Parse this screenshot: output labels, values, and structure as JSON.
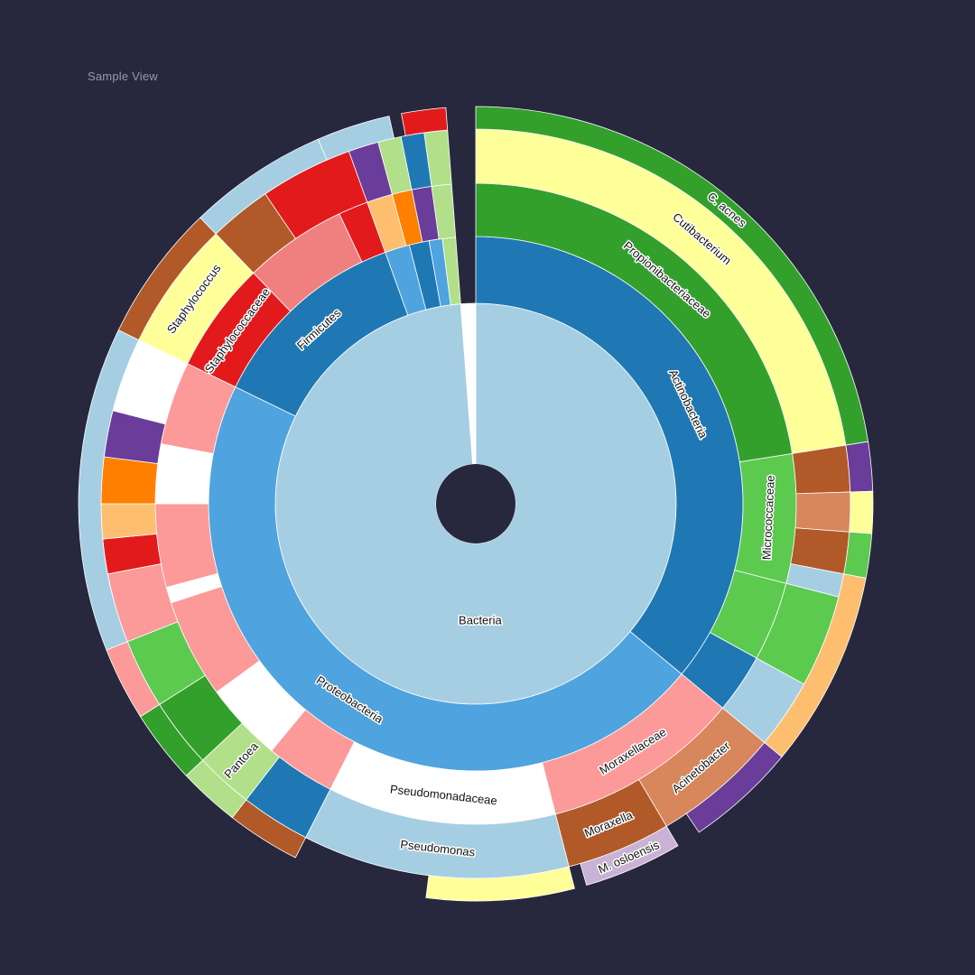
{
  "view_title": "Sample View",
  "colors": {
    "background": "#27273d",
    "segment_border": "#ffffff"
  },
  "chart_data": {
    "type": "sunburst",
    "title": "",
    "levels": [
      "domain",
      "phylum",
      "family",
      "genus",
      "species"
    ],
    "segments": [
      {
        "level": 0,
        "label": "Bacteria",
        "start": 0.0,
        "end": 0.988,
        "color": "#a6cee3",
        "show_label": true
      },
      {
        "level": 0,
        "label": "",
        "start": 0.988,
        "end": 1.0,
        "color": "#ffffff"
      },
      {
        "level": 1,
        "label": "Actinobacteria",
        "start": 0.0,
        "end": 0.36,
        "color": "#1f78b4",
        "show_label": true
      },
      {
        "level": 1,
        "label": "Proteobacteria",
        "start": 0.36,
        "end": 0.822,
        "color": "#4fa3de",
        "show_label": true
      },
      {
        "level": 1,
        "label": "Firmicutes",
        "start": 0.822,
        "end": 0.945,
        "color": "#1f78b4",
        "show_label": true
      },
      {
        "level": 1,
        "label": "",
        "start": 0.945,
        "end": 0.96,
        "color": "#4fa3de"
      },
      {
        "level": 1,
        "label": "",
        "start": 0.96,
        "end": 0.972,
        "color": "#1f78b4"
      },
      {
        "level": 1,
        "label": "",
        "start": 0.972,
        "end": 0.98,
        "color": "#4fa3de"
      },
      {
        "level": 1,
        "label": "",
        "start": 0.98,
        "end": 0.988,
        "color": "#b2df8a"
      },
      {
        "level": 2,
        "label": "Propionibacteriaceae",
        "start": 0.0,
        "end": 0.225,
        "color": "#33a02c",
        "show_label": true
      },
      {
        "level": 2,
        "label": "Micrococcaceae",
        "start": 0.225,
        "end": 0.29,
        "color": "#5cc94f",
        "show_label": true
      },
      {
        "level": 2,
        "label": "",
        "start": 0.29,
        "end": 0.33,
        "color": "#5cc94f"
      },
      {
        "level": 2,
        "label": "",
        "start": 0.33,
        "end": 0.36,
        "color": "#1f78b4"
      },
      {
        "level": 2,
        "label": "Moraxellaceae",
        "start": 0.36,
        "end": 0.46,
        "color": "#fb9a99",
        "show_label": true
      },
      {
        "level": 2,
        "label": "Pseudomonadaceae",
        "start": 0.46,
        "end": 0.575,
        "color": "#ffffff",
        "show_label": true
      },
      {
        "level": 2,
        "label": "",
        "start": 0.575,
        "end": 0.61,
        "color": "#fb9a99"
      },
      {
        "level": 2,
        "label": "",
        "start": 0.61,
        "end": 0.65,
        "color": "#ffffff"
      },
      {
        "level": 2,
        "label": "",
        "start": 0.65,
        "end": 0.7,
        "color": "#fb9a99"
      },
      {
        "level": 2,
        "label": "",
        "start": 0.7,
        "end": 0.708,
        "color": "#ffffff"
      },
      {
        "level": 2,
        "label": "",
        "start": 0.708,
        "end": 0.75,
        "color": "#fb9a99"
      },
      {
        "level": 2,
        "label": "",
        "start": 0.75,
        "end": 0.78,
        "color": "#ffffff"
      },
      {
        "level": 2,
        "label": "",
        "start": 0.78,
        "end": 0.822,
        "color": "#fb9a99"
      },
      {
        "level": 2,
        "label": "Staphylococcaceae",
        "start": 0.822,
        "end": 0.878,
        "color": "#e31a1c",
        "show_label": true
      },
      {
        "level": 2,
        "label": "",
        "start": 0.878,
        "end": 0.93,
        "color": "#f08080"
      },
      {
        "level": 2,
        "label": "",
        "start": 0.93,
        "end": 0.945,
        "color": "#e31a1c"
      },
      {
        "level": 2,
        "label": "",
        "start": 0.945,
        "end": 0.958,
        "color": "#fdbf6f"
      },
      {
        "level": 2,
        "label": "",
        "start": 0.958,
        "end": 0.968,
        "color": "#ff7f00"
      },
      {
        "level": 2,
        "label": "",
        "start": 0.968,
        "end": 0.978,
        "color": "#6a3d9a"
      },
      {
        "level": 2,
        "label": "",
        "start": 0.978,
        "end": 0.988,
        "color": "#b2df8a"
      },
      {
        "level": 3,
        "label": "Cutibacterium",
        "start": 0.0,
        "end": 0.225,
        "color": "#ffff99",
        "show_label": true
      },
      {
        "level": 3,
        "label": "",
        "start": 0.225,
        "end": 0.245,
        "color": "#b15928"
      },
      {
        "level": 3,
        "label": "",
        "start": 0.245,
        "end": 0.262,
        "color": "#d8865b"
      },
      {
        "level": 3,
        "label": "",
        "start": 0.262,
        "end": 0.28,
        "color": "#b15928"
      },
      {
        "level": 3,
        "label": "",
        "start": 0.28,
        "end": 0.29,
        "color": "#a6cee3"
      },
      {
        "level": 3,
        "label": "",
        "start": 0.29,
        "end": 0.33,
        "color": "#5cc94f"
      },
      {
        "level": 3,
        "label": "",
        "start": 0.33,
        "end": 0.36,
        "color": "#a6cee3"
      },
      {
        "level": 3,
        "label": "Acinetobacter",
        "start": 0.36,
        "end": 0.415,
        "color": "#d8865b",
        "show_label": true
      },
      {
        "level": 3,
        "label": "Moraxella",
        "start": 0.415,
        "end": 0.46,
        "color": "#b15928",
        "show_label": true
      },
      {
        "level": 3,
        "label": "Pseudomonas",
        "start": 0.46,
        "end": 0.575,
        "color": "#a6cee3",
        "show_label": true
      },
      {
        "level": 3,
        "label": "",
        "start": 0.575,
        "end": 0.605,
        "color": "#1f78b4"
      },
      {
        "level": 3,
        "label": "Pantoea",
        "start": 0.605,
        "end": 0.63,
        "color": "#b2df8a",
        "show_label": true
      },
      {
        "level": 3,
        "label": "",
        "start": 0.63,
        "end": 0.66,
        "color": "#33a02c"
      },
      {
        "level": 3,
        "label": "",
        "start": 0.66,
        "end": 0.69,
        "color": "#5cc94f"
      },
      {
        "level": 3,
        "label": "",
        "start": 0.69,
        "end": 0.72,
        "color": "#fb9a99"
      },
      {
        "level": 3,
        "label": "",
        "start": 0.72,
        "end": 0.735,
        "color": "#e31a1c"
      },
      {
        "level": 3,
        "label": "",
        "start": 0.735,
        "end": 0.75,
        "color": "#fdbf6f"
      },
      {
        "level": 3,
        "label": "",
        "start": 0.75,
        "end": 0.77,
        "color": "#ff7f00"
      },
      {
        "level": 3,
        "label": "",
        "start": 0.77,
        "end": 0.79,
        "color": "#6a3d9a"
      },
      {
        "level": 3,
        "label": "",
        "start": 0.79,
        "end": 0.822,
        "color": "#ffffff"
      },
      {
        "level": 3,
        "label": "Staphylococcus",
        "start": 0.822,
        "end": 0.878,
        "color": "#ffff99",
        "show_label": true
      },
      {
        "level": 3,
        "label": "",
        "start": 0.878,
        "end": 0.905,
        "color": "#b15928"
      },
      {
        "level": 3,
        "label": "",
        "start": 0.905,
        "end": 0.945,
        "color": "#e31a1c"
      },
      {
        "level": 3,
        "label": "",
        "start": 0.945,
        "end": 0.958,
        "color": "#6a3d9a"
      },
      {
        "level": 3,
        "label": "",
        "start": 0.958,
        "end": 0.968,
        "color": "#b2df8a"
      },
      {
        "level": 3,
        "label": "",
        "start": 0.968,
        "end": 0.978,
        "color": "#1f78b4"
      },
      {
        "level": 3,
        "label": "",
        "start": 0.978,
        "end": 0.988,
        "color": "#b2df8a"
      },
      {
        "level": 4,
        "label": "C. acnes",
        "start": 0.0,
        "end": 0.225,
        "color": "#33a02c",
        "show_label": true
      },
      {
        "level": 4,
        "label": "",
        "start": 0.225,
        "end": 0.245,
        "color": "#6a3d9a"
      },
      {
        "level": 4,
        "label": "",
        "start": 0.245,
        "end": 0.262,
        "color": "#ffff99"
      },
      {
        "level": 4,
        "label": "",
        "start": 0.262,
        "end": 0.28,
        "color": "#5cc94f"
      },
      {
        "level": 4,
        "label": "",
        "start": 0.28,
        "end": 0.36,
        "color": "#fdbf6f"
      },
      {
        "level": 4,
        "label": "",
        "start": 0.36,
        "end": 0.405,
        "color": "#6a3d9a"
      },
      {
        "level": 4,
        "label": "M. osloensis",
        "start": 0.415,
        "end": 0.455,
        "color": "#cab2d6",
        "show_label": true
      },
      {
        "level": 4,
        "label": "",
        "start": 0.46,
        "end": 0.52,
        "color": "#ffff99"
      },
      {
        "level": 4,
        "label": "",
        "start": 0.575,
        "end": 0.605,
        "color": "#b15928"
      },
      {
        "level": 4,
        "label": "",
        "start": 0.605,
        "end": 0.63,
        "color": "#b2df8a"
      },
      {
        "level": 4,
        "label": "",
        "start": 0.63,
        "end": 0.66,
        "color": "#33a02c"
      },
      {
        "level": 4,
        "label": "",
        "start": 0.66,
        "end": 0.69,
        "color": "#fb9a99"
      },
      {
        "level": 4,
        "label": "",
        "start": 0.69,
        "end": 0.822,
        "color": "#a6cee3"
      },
      {
        "level": 4,
        "label": "",
        "start": 0.822,
        "end": 0.878,
        "color": "#b15928"
      },
      {
        "level": 4,
        "label": "",
        "start": 0.878,
        "end": 0.935,
        "color": "#a6cee3"
      },
      {
        "level": 4,
        "label": "",
        "start": 0.935,
        "end": 0.965,
        "color": "#a6cee3"
      },
      {
        "level": 4,
        "label": "",
        "start": 0.97,
        "end": 0.988,
        "color": "#e31a1c"
      }
    ]
  }
}
